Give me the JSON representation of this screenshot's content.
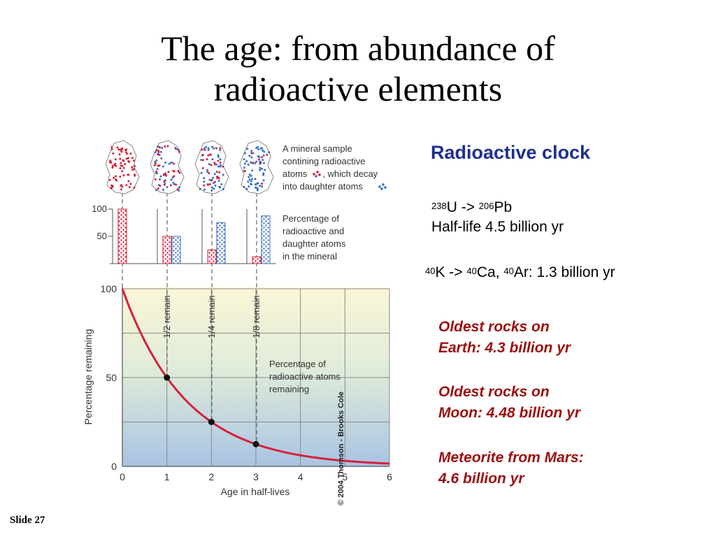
{
  "slide": {
    "title_line1": "The age: from abundance of",
    "title_line2": "radioactive elements",
    "slide_number": "Slide 27"
  },
  "figure": {
    "copyright": "© 2004 Thomson - Brooks Cole",
    "mineral_caption": [
      "A mineral sample",
      "contining radioactive",
      "atoms",
      ", which decay",
      "into daughter atoms"
    ],
    "bar_caption": [
      "Percentage of",
      "radioactive and",
      "daughter atoms",
      "in the mineral"
    ],
    "bar_ticks": [
      "100",
      "50"
    ],
    "bars": [
      {
        "radioactive": 100,
        "daughter": 0
      },
      {
        "radioactive": 50,
        "daughter": 50
      },
      {
        "radioactive": 25,
        "daughter": 75
      },
      {
        "radioactive": 12.5,
        "daughter": 87.5
      }
    ],
    "remain_labels": [
      "1/2 remain",
      "1/4 remain",
      "1/8 remain"
    ],
    "curve_caption": [
      "Percentage of",
      "radioactive atoms",
      "remaining"
    ],
    "colors": {
      "radioactive": "#d8203a",
      "daughter": "#3a6fc8",
      "curve": "#d8203a"
    }
  },
  "chart_data": {
    "type": "line",
    "xlabel": "Age in half-lives",
    "ylabel": "Percentage remaining",
    "xlim": [
      0,
      6
    ],
    "ylim": [
      0,
      100
    ],
    "x_ticks": [
      "0",
      "1",
      "2",
      "3",
      "4",
      "5",
      "6"
    ],
    "y_ticks": [
      "100",
      "50",
      "0"
    ],
    "series": [
      {
        "x": [
          0,
          0.5,
          1,
          1.5,
          2,
          2.5,
          3,
          3.5,
          4,
          4.5,
          5,
          5.5,
          6
        ],
        "y": [
          100,
          70.7,
          50,
          35.4,
          25,
          17.7,
          12.5,
          8.8,
          6.25,
          4.4,
          3.1,
          2.2,
          1.6
        ]
      }
    ],
    "points": [
      {
        "x": 1,
        "y": 50
      },
      {
        "x": 2,
        "y": 25
      },
      {
        "x": 3,
        "y": 12.5
      }
    ]
  },
  "right_panel": {
    "clock_heading": "Radioactive clock",
    "u_mass": "238",
    "u_sym": "U -> ",
    "pb_mass": "206",
    "pb_sym": "Pb",
    "half_life": "Half-life 4.5 billion yr",
    "k_mass": "40",
    "k_sym": "K -> ",
    "ca_mass": "40",
    "ca_sym": "Ca, ",
    "ar_mass": "40",
    "ar_sym": "Ar: 1.3 billion yr",
    "facts": [
      {
        "line1": "Oldest rocks on",
        "line2": "Earth: 4.3 billion yr"
      },
      {
        "line1": "Oldest rocks on",
        "line2": "Moon: 4.48 billion yr"
      },
      {
        "line1": "Meteorite from Mars:",
        "line2": "4.6 billion yr"
      }
    ]
  }
}
